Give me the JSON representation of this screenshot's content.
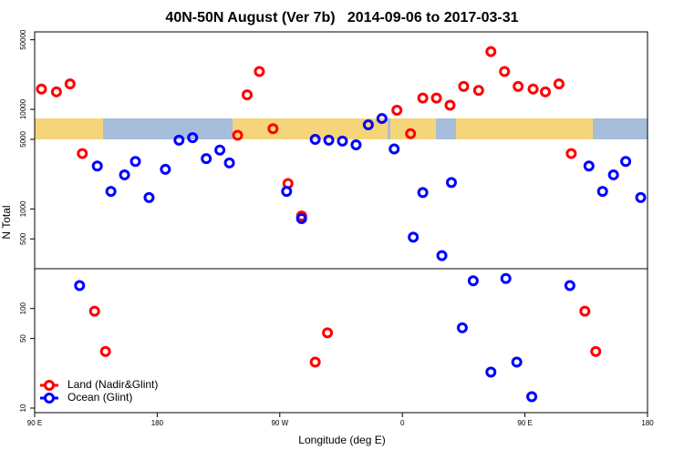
{
  "chart_data": {
    "type": "scatter",
    "title": "40N-50N August (Ver 7b)   2014-09-06 to 2017-03-31",
    "x_label": "Longitude (deg E)",
    "y_label": "N Total",
    "y_scale": "log",
    "grid": false,
    "legend_position": "lower left",
    "xlim": [
      90,
      540
    ],
    "ylim": [
      9,
      60000
    ],
    "xticks": [
      {
        "value": 90,
        "label": "90 E"
      },
      180,
      {
        "value": 270,
        "label": "90 W"
      },
      {
        "value": 360,
        "label": "0"
      },
      {
        "value": 450,
        "label": "90 E"
      },
      {
        "value": 540,
        "label": "180"
      }
    ],
    "yticks": [
      10,
      50,
      100,
      500,
      1000,
      5000,
      10000,
      50000
    ],
    "series": [
      {
        "name": "Land (Nadir&Glint)",
        "color": "#ff0000",
        "x": [
          95,
          106,
          116,
          125,
          134,
          142,
          239,
          246,
          255,
          265,
          276,
          286,
          296,
          305,
          356,
          366,
          375,
          385,
          395,
          405,
          416,
          425,
          435,
          445,
          456,
          465,
          475,
          484,
          494,
          502
        ],
        "values": [
          16000,
          15000,
          18000,
          3600,
          94,
          37,
          5500,
          14000,
          24000,
          6400,
          1800,
          850,
          29,
          57,
          9800,
          5700,
          13000,
          13000,
          11000,
          17000,
          15500,
          38000,
          24000,
          17000,
          16000,
          15000,
          18000,
          3600,
          94,
          37
        ]
      },
      {
        "name": "Ocean (Glint)",
        "color": "#0000ff",
        "x": [
          123,
          136,
          146,
          156,
          164,
          174,
          186,
          196,
          206,
          216,
          226,
          233,
          275,
          286,
          296,
          306,
          316,
          326,
          335,
          345,
          354,
          368,
          375,
          389,
          396,
          404,
          412,
          425,
          436,
          444,
          455,
          483,
          497,
          507,
          515,
          524,
          535
        ],
        "values": [
          170,
          2700,
          1500,
          2200,
          3000,
          1300,
          2500,
          4900,
          5200,
          3200,
          3900,
          2900,
          1500,
          800,
          5000,
          4900,
          4800,
          4400,
          7000,
          8100,
          4000,
          520,
          1460,
          340,
          1840,
          64,
          190,
          23,
          200,
          29,
          13,
          170,
          2700,
          1500,
          2200,
          3000,
          1300
        ]
      }
    ]
  }
}
